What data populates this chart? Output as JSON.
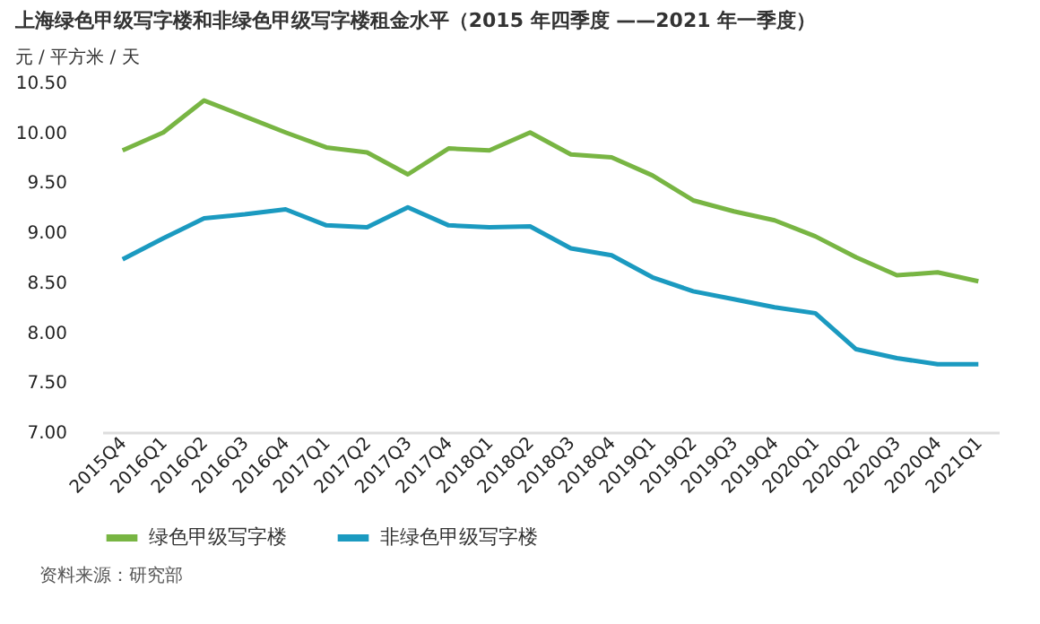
{
  "chart_data": {
    "type": "line",
    "title": "上海绿色甲级写字楼和非绿色甲级写字楼租金水平（2015 年四季度 ——2021 年一季度）",
    "ylabel": "元 / 平方米 / 天",
    "categories": [
      "2015Q4",
      "2016Q1",
      "2016Q2",
      "2016Q3",
      "2016Q4",
      "2017Q1",
      "2017Q2",
      "2017Q3",
      "2017Q4",
      "2018Q1",
      "2018Q2",
      "2018Q3",
      "2018Q4",
      "2019Q1",
      "2019Q2",
      "2019Q3",
      "2019Q4",
      "2020Q1",
      "2020Q2",
      "2020Q3",
      "2020Q4",
      "2021Q1"
    ],
    "series": [
      {
        "name": "绿色甲级写字楼",
        "color": "#78b543",
        "values": [
          9.82,
          10.0,
          10.32,
          10.16,
          10.0,
          9.85,
          9.8,
          9.58,
          9.84,
          9.82,
          10.0,
          9.78,
          9.75,
          9.57,
          9.32,
          9.21,
          9.12,
          8.96,
          8.75,
          8.57,
          8.6,
          8.51
        ]
      },
      {
        "name": "非绿色甲级写字楼",
        "color": "#1b9ac0",
        "values": [
          8.73,
          8.94,
          9.14,
          9.18,
          9.23,
          9.07,
          9.05,
          9.25,
          9.07,
          9.05,
          9.06,
          8.84,
          8.77,
          8.55,
          8.41,
          8.33,
          8.25,
          8.19,
          7.83,
          7.74,
          7.68,
          7.68
        ]
      }
    ],
    "ylim": [
      7,
      10.5
    ],
    "yticks": [
      {
        "value": 7,
        "label": "7.00"
      },
      {
        "value": 7.5,
        "label": "7.50"
      },
      {
        "value": 8,
        "label": "8.00"
      },
      {
        "value": 8.5,
        "label": "8.50"
      },
      {
        "value": 9,
        "label": "9.00"
      },
      {
        "value": 9.5,
        "label": "9.50"
      },
      {
        "value": 10,
        "label": "10.00"
      },
      {
        "value": 10.5,
        "label": "10.50"
      }
    ],
    "grid": false,
    "legend": "bottom",
    "marker": "none",
    "line_style": "solid",
    "annotations": [
      "资料来源：研究部"
    ]
  }
}
